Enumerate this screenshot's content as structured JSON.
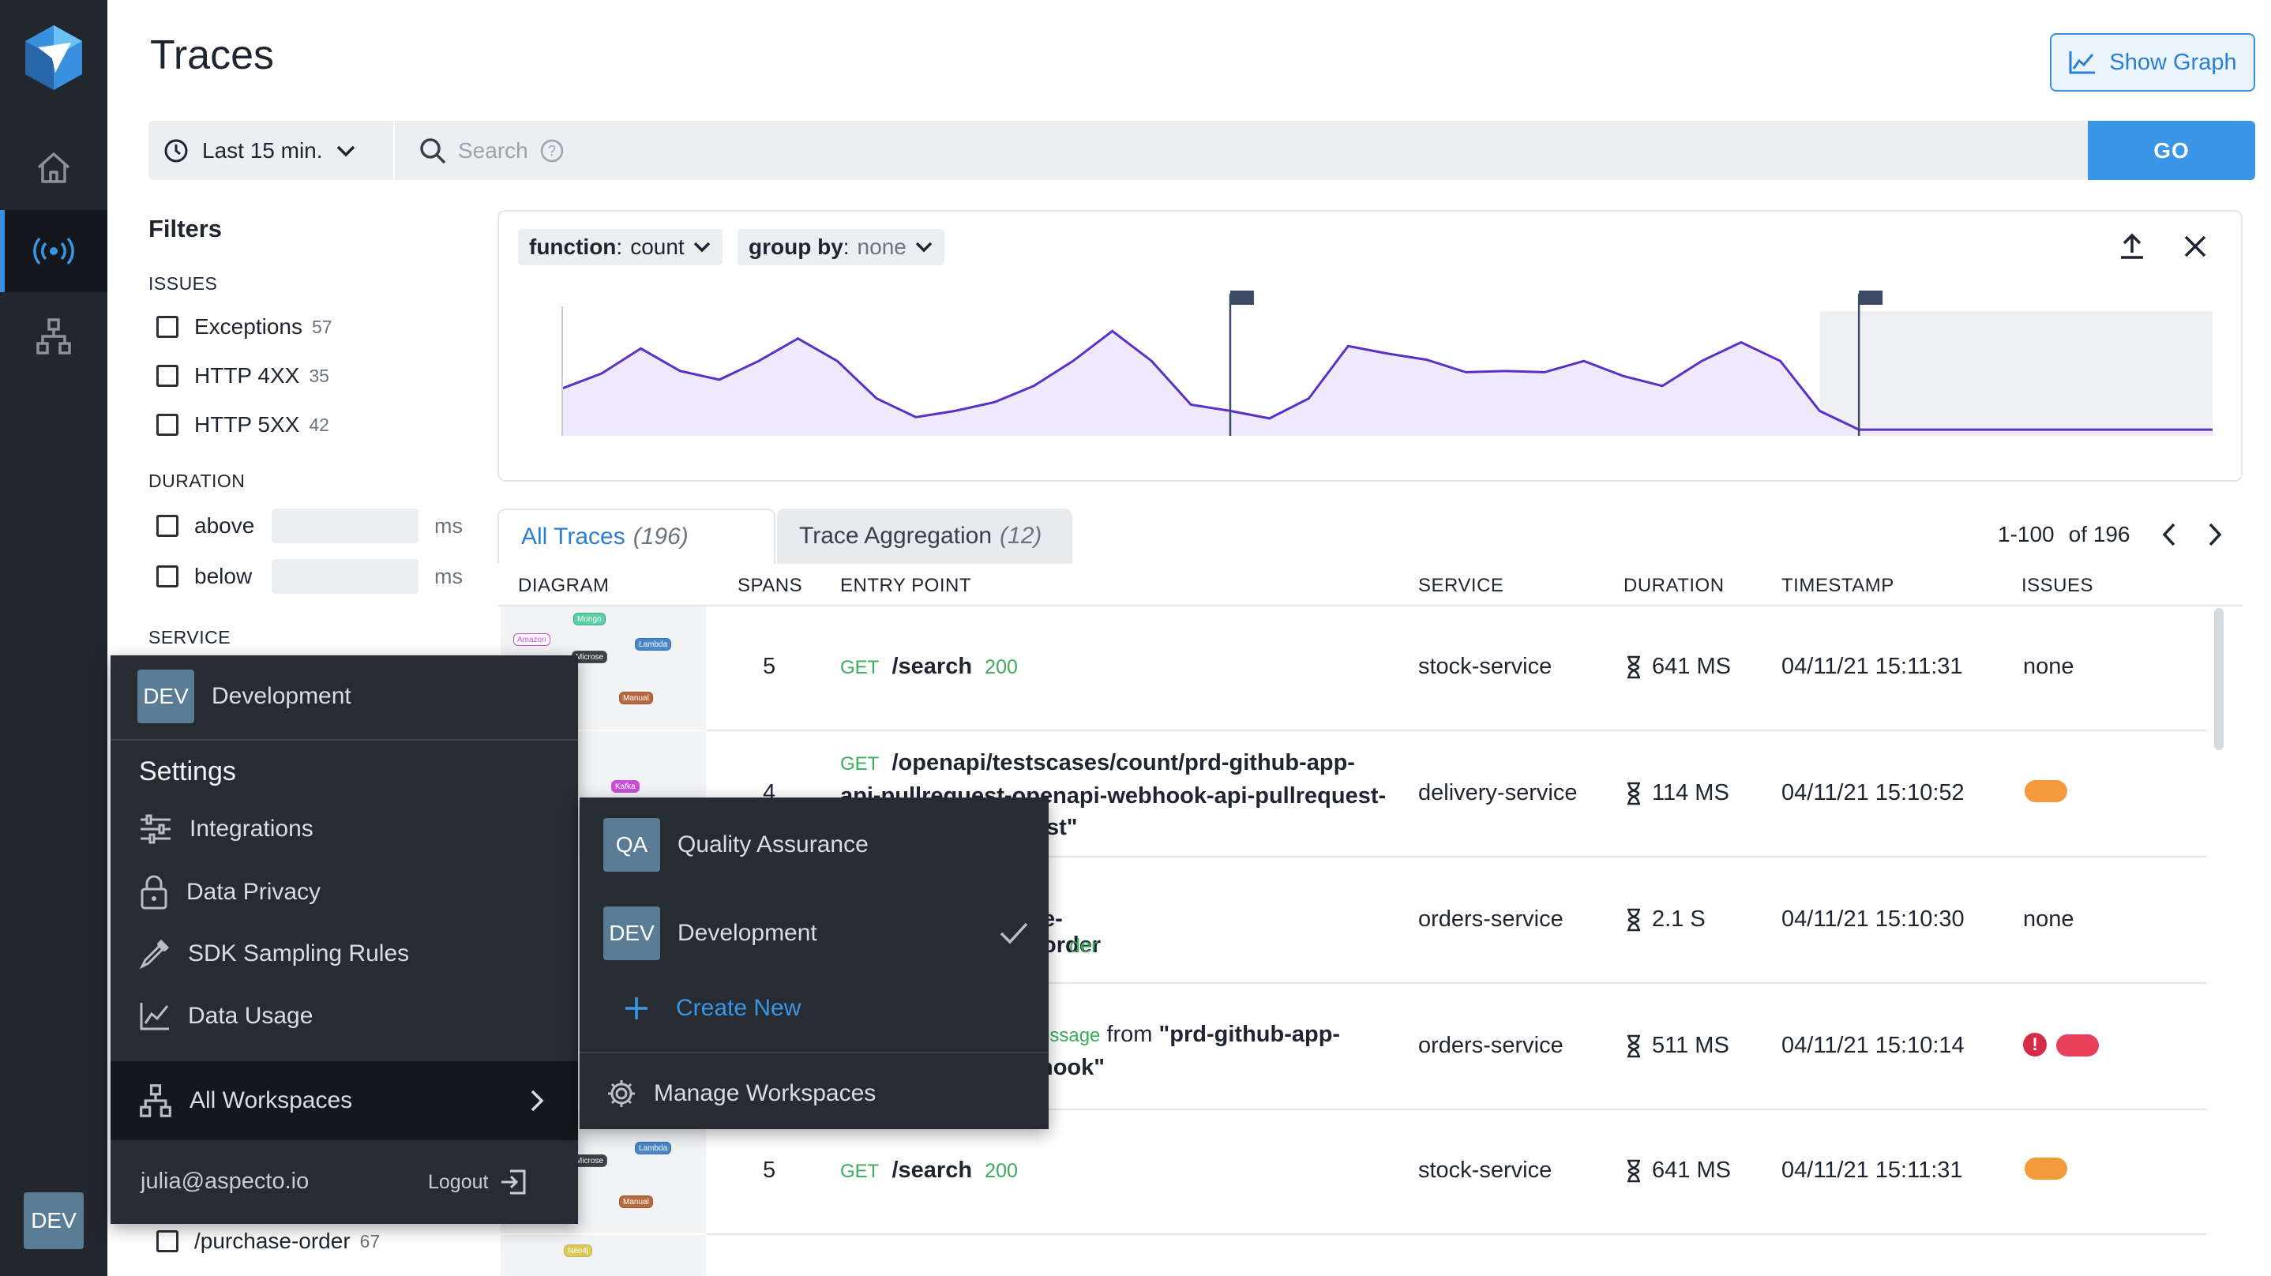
{
  "header": {
    "title": "Traces",
    "show_graph_label": "Show Graph"
  },
  "leftnav": {
    "user_badge": "DEV"
  },
  "search": {
    "time_range": "Last 15 min.",
    "placeholder": "Search",
    "go_label": "GO"
  },
  "filters": {
    "title": "Filters",
    "issues_label": "ISSUES",
    "issues": [
      {
        "label": "Exceptions",
        "count": "57"
      },
      {
        "label": "HTTP 4XX",
        "count": "35"
      },
      {
        "label": "HTTP 5XX",
        "count": "42"
      }
    ],
    "duration_label": "DURATION",
    "duration": [
      {
        "label": "above",
        "unit": "ms"
      },
      {
        "label": "below",
        "unit": "ms"
      }
    ],
    "service_label": "SERVICE",
    "entry_item": {
      "label": "/purchase-order",
      "count": "67"
    }
  },
  "chart_controls": {
    "function_key": "function",
    "function_value": "count",
    "group_key": "group by",
    "group_value": "none"
  },
  "chart_data": {
    "type": "area",
    "x": [
      0,
      1,
      2,
      3,
      4,
      5,
      6,
      7,
      8,
      9,
      10,
      11,
      12,
      13,
      14,
      15,
      16,
      17,
      18,
      19,
      20,
      21,
      22,
      23,
      24,
      25,
      26,
      27,
      28,
      29,
      30,
      31,
      32,
      33,
      34,
      35,
      36,
      37,
      38,
      39,
      40,
      41,
      42
    ],
    "values": [
      38,
      50,
      70,
      52,
      45,
      60,
      78,
      60,
      30,
      15,
      20,
      27,
      40,
      60,
      84,
      60,
      25,
      20,
      14,
      30,
      72,
      66,
      61,
      51,
      52,
      51,
      60,
      48,
      40,
      60,
      75,
      60,
      20,
      5,
      5,
      5,
      5,
      5,
      5,
      5,
      5,
      5,
      5
    ],
    "ylim": [
      0,
      100
    ],
    "grid": false,
    "markers_at": [
      17,
      33
    ],
    "highlight_range": [
      32,
      42
    ]
  },
  "tabs": [
    {
      "label": "All Traces",
      "count": "(196)"
    },
    {
      "label": "Trace Aggregation",
      "count": "(12)"
    }
  ],
  "pager": {
    "range": "1-100",
    "of": "of 196"
  },
  "table": {
    "headers": [
      "DIAGRAM",
      "SPANS",
      "ENTRY POINT",
      "SERVICE",
      "DURATION",
      "TIMESTAMP",
      "ISSUES"
    ],
    "rows": [
      {
        "spans": "5",
        "method": "GET",
        "path": "/search",
        "code": "200",
        "service": "stock-service",
        "duration": "641 MS",
        "timestamp": "04/11/21 15:11:31",
        "issues": "none"
      },
      {
        "spans": "4",
        "method": "GET",
        "path": "/openapi/testscases/count/prd-github-app-api-pullrequest-openapi-webhook-api-pullrequest-openapi-webhook-api-pullrequest\"",
        "code": "",
        "service": "delivery-service",
        "duration": "114 MS",
        "timestamp": "04/11/21 15:10:52",
        "issues": ""
      },
      {
        "spans": "",
        "method": "",
        "path": "e-order",
        "code": "200",
        "service": "orders-service",
        "duration": "2.1 S",
        "timestamp": "04/11/21 15:10:30",
        "issues": "none"
      },
      {
        "spans": "",
        "method": "",
        "path": "essage from \"prd-github-app-webhook\"",
        "code": "",
        "service": "orders-service",
        "duration": "511 MS",
        "timestamp": "04/11/21 15:10:14",
        "issues": ""
      },
      {
        "spans": "5",
        "method": "GET",
        "path": "/search",
        "code": "200",
        "service": "stock-service",
        "duration": "641 MS",
        "timestamp": "04/11/21 15:11:31",
        "issues": ""
      }
    ],
    "row4_prefix": "essage",
    "row4_from": "from",
    "row4_name": "\"prd-github-app-",
    "row4_name2": "hook\"",
    "row3_path": "e-order",
    "row3_code": "der",
    "row2_line1": "/openapi/testscases/count/prd-github-app-",
    "row2_line2": "api-pullrequest-openapi-webhook-api-pullrequest-",
    "row2_line3": "hook-api-pullrequest\"",
    "diagram_nodes": [
      "Amazon",
      "Mongo",
      "Lambda",
      "Microse",
      "Manual",
      "Kafka",
      "Neo4j"
    ]
  },
  "user_menu": {
    "workspace_badge": "DEV",
    "workspace_name": "Development",
    "settings_title": "Settings",
    "items": [
      "Integrations",
      "Data Privacy",
      "SDK Sampling Rules",
      "Data Usage"
    ],
    "all_workspaces": "All Workspaces",
    "email": "julia@aspecto.io",
    "logout": "Logout"
  },
  "workspace_menu": {
    "workspaces": [
      {
        "badge": "QA",
        "name": "Quality Assurance"
      },
      {
        "badge": "DEV",
        "name": "Development"
      }
    ],
    "create_new": "Create New",
    "manage": "Manage Workspaces"
  },
  "colors": {
    "accent": "#3a96e6",
    "nav_bg": "#22262d",
    "menu_bg": "#272b32",
    "chart_line": "#5b30c9",
    "chart_fill": "#efe9fb",
    "get_green": "#3cab5a",
    "issue_orange": "#f39a3c",
    "issue_red": "#e8405a"
  }
}
